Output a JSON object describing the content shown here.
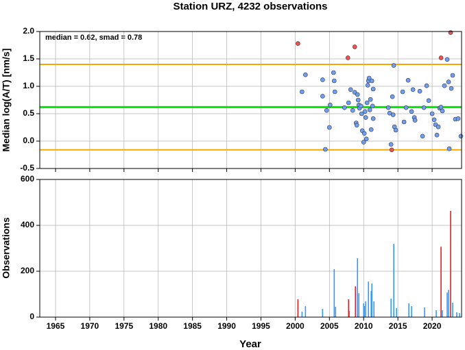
{
  "chart_data": [
    {
      "type": "scatter",
      "title": "Station URZ, 4232 observations",
      "y_label": "Median log(A/T) [nm/s]",
      "annotation": "median = 0.62, smad = 0.78",
      "xlim": [
        1962.7,
        2024.3
      ],
      "xticks": [
        1965,
        1970,
        1975,
        1980,
        1985,
        1990,
        1995,
        2000,
        2005,
        2010,
        2015,
        2020
      ],
      "ylim": [
        -0.5,
        2.0
      ],
      "yticks": [
        -0.5,
        {
          "value": 0,
          "label": "0.0"
        },
        0.5,
        {
          "value": 1,
          "label": "1.0"
        },
        1.5,
        {
          "value": 2,
          "label": "2.0"
        }
      ],
      "grid": true,
      "hlines": [
        {
          "value": 1.4,
          "color": "#f5a800"
        },
        {
          "value": -0.16,
          "color": "#f5a800"
        },
        {
          "value": 0.62,
          "color": "#00e600"
        }
      ],
      "series": [
        {
          "color": "#6f9ff0",
          "x": [
            2001.0,
            2001.5,
            2004.0,
            2004.0,
            2004.4,
            2004.6,
            2005.0,
            2005.1,
            2005.6,
            2005.7,
            2005.8,
            2007.2,
            2007.8,
            2008.1,
            2008.4,
            2008.7,
            2008.9,
            2009.0,
            2009.1,
            2009.2,
            2009.3,
            2009.4,
            2009.6,
            2009.7,
            2009.8,
            2010.0,
            2010.1,
            2010.2,
            2010.3,
            2010.4,
            2010.5,
            2010.6,
            2010.7,
            2010.8,
            2010.9,
            2011.0,
            2011.1,
            2011.2,
            2011.3,
            2011.4,
            2011.4,
            2013.6,
            2013.8,
            2014.0,
            2014.2,
            2014.3,
            2014.4,
            2014.5,
            2014.7,
            2015.7,
            2015.9,
            2016.2,
            2016.5,
            2017.0,
            2017.2,
            2017.4,
            2017.5,
            2018.2,
            2018.6,
            2018.8,
            2019.2,
            2019.5,
            2020.0,
            2020.3,
            2020.5,
            2020.7,
            2020.9,
            2021.1,
            2021.3,
            2021.5,
            2021.8,
            2022.2,
            2022.4,
            2022.5,
            2022.8,
            2023.0,
            2023.4,
            2023.8,
            2024.2
          ],
          "values": [
            0.9,
            1.21,
            1.12,
            0.82,
            -0.15,
            0.56,
            0.25,
            0.66,
            1.25,
            1.1,
            0.9,
            0.61,
            0.7,
            0.94,
            0.56,
            0.89,
            0.33,
            0.29,
            0.85,
            0.75,
            0.66,
            0.6,
            0.64,
            0.5,
            0.19,
            -0.02,
            0.14,
            0.54,
            0.43,
            0.04,
            0.7,
            1.02,
            1.1,
            1.15,
            0.57,
            0.76,
            0.21,
            1.1,
            0.64,
            0.95,
            0.41,
            0.61,
            0.51,
            -0.06,
            0.81,
            0.48,
            1.38,
            0.26,
            0.2,
            0.9,
            0.35,
            0.61,
            1.11,
            0.54,
            0.94,
            0.43,
            0.38,
            0.91,
            0.09,
            0.61,
            1.01,
            0.74,
            0.5,
            0.39,
            0.3,
            0.11,
            0.26,
            0.6,
            0.62,
            0.55,
            1.01,
            1.49,
            1.08,
            -0.14,
            0.96,
            1.2,
            0.4,
            0.41,
            0.09
          ]
        },
        {
          "color": "#f05050",
          "x": [
            2000.4,
            2007.7,
            2008.7,
            2014.1,
            2021.3,
            2022.7
          ],
          "values": [
            1.78,
            1.52,
            1.72,
            -0.16,
            1.52,
            1.98
          ]
        }
      ]
    },
    {
      "type": "bar",
      "x_label": "Year",
      "y_label": "Observations",
      "xlim": [
        1962.7,
        2024.3
      ],
      "xticks": [
        1965,
        1970,
        1975,
        1980,
        1985,
        1990,
        1995,
        2000,
        2005,
        2010,
        2015,
        2020
      ],
      "ylim": [
        0,
        600
      ],
      "yticks": [
        0,
        200,
        400,
        600
      ],
      "grid": true,
      "series": [
        {
          "color": "#3399ff",
          "x": [
            2001.0,
            2001.5,
            2004.0,
            2005.7,
            2005.9,
            2007.9,
            2009.1,
            2009.3,
            2010.0,
            2010.1,
            2010.3,
            2010.7,
            2011.1,
            2011.2,
            2011.5,
            2014.0,
            2014.4,
            2014.8,
            2016.6,
            2017.0,
            2018.9,
            2020.6,
            2021.5,
            2022.2,
            2022.4,
            2023.0,
            2023.6,
            2024.0
          ],
          "values": [
            24,
            48,
            36,
            209,
            45,
            27,
            257,
            104,
            60,
            48,
            69,
            155,
            113,
            146,
            69,
            81,
            319,
            39,
            60,
            48,
            42,
            30,
            30,
            107,
            119,
            63,
            21,
            18
          ]
        },
        {
          "color": "#e02020",
          "x": [
            2000.4,
            2007.8,
            2008.8,
            2021.3,
            2022.7
          ],
          "values": [
            78,
            78,
            134,
            307,
            463
          ]
        }
      ]
    }
  ]
}
